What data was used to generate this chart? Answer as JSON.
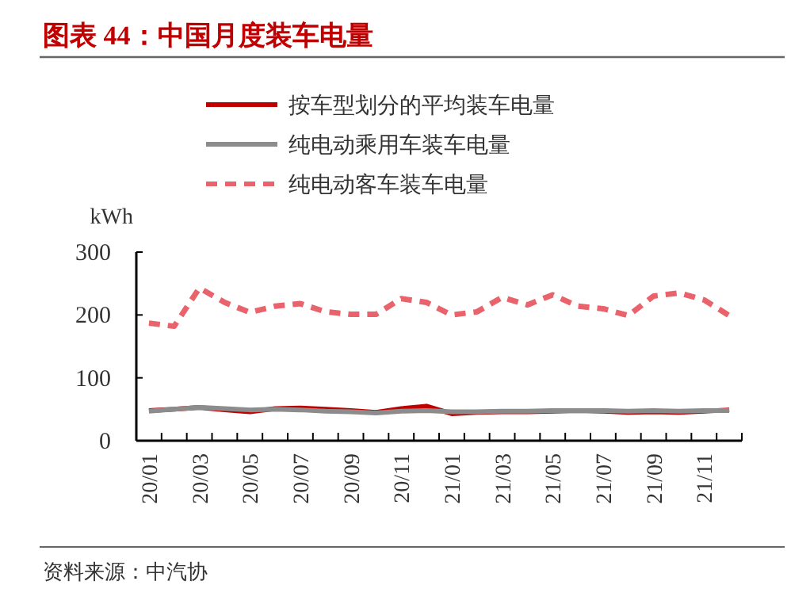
{
  "chart_data": {
    "type": "line",
    "title": "图表 44：中国月度装车电量",
    "ylabel": "kWh",
    "categories": [
      "20/01",
      null,
      "20/03",
      null,
      "20/05",
      null,
      "20/07",
      null,
      "20/09",
      null,
      "20/11",
      null,
      "21/01",
      null,
      "21/03",
      null,
      "21/05",
      null,
      "21/07",
      null,
      "21/09",
      null,
      "21/11",
      null
    ],
    "series": [
      {
        "name": "按车型划分的平均装车电量",
        "color": "#c00000",
        "line_style": "solid",
        "values": [
          48,
          50,
          53,
          49,
          46,
          51,
          52,
          50,
          48,
          45,
          51,
          55,
          43,
          45,
          46,
          46,
          47,
          48,
          47,
          45,
          46,
          45,
          47,
          49
        ]
      },
      {
        "name": "纯电动乘用车装车电量",
        "color": "#8c8c8c",
        "line_style": "solid",
        "values": [
          47,
          50,
          53,
          51,
          49,
          50,
          49,
          47,
          46,
          44,
          47,
          48,
          46,
          46,
          47,
          47,
          48,
          48,
          48,
          47,
          48,
          47,
          48,
          48
        ]
      },
      {
        "name": "纯电动客车装车电量",
        "color": "#e8636b",
        "line_style": "dashed",
        "values": [
          187,
          182,
          243,
          220,
          204,
          214,
          218,
          205,
          201,
          201,
          226,
          220,
          200,
          205,
          228,
          216,
          232,
          214,
          210,
          199,
          230,
          235,
          224,
          199
        ]
      }
    ],
    "ylim": [
      0,
      300
    ],
    "yticks": [
      0,
      100,
      200,
      300
    ],
    "grid": false,
    "legend": "top",
    "marker": "none",
    "annotations": [
      "资料来源：中汽协"
    ]
  }
}
